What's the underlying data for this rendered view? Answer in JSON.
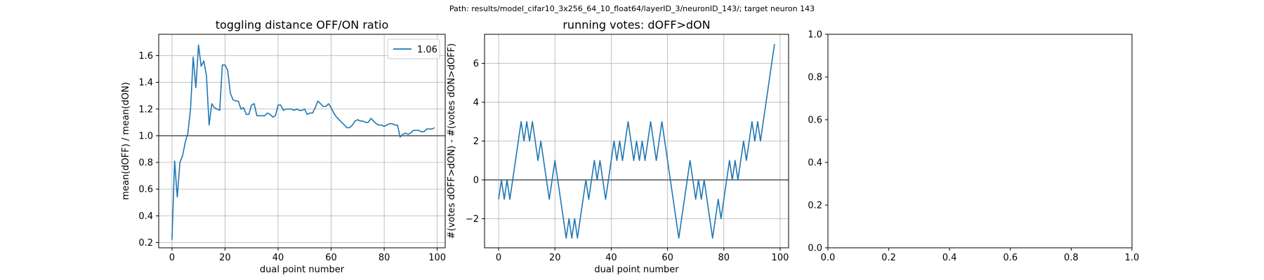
{
  "figure": {
    "suptitle": "Path: results/model_cifar10_3x256_64_10_float64/layerID_3/neuronID_143/; target neuron 143"
  },
  "chart_data": [
    {
      "type": "line",
      "title": "toggling distance OFF/ON ratio",
      "xlabel": "dual point number",
      "ylabel": "mean(dOFF) / mean(dON)",
      "xlim": [
        -5,
        103
      ],
      "ylim": [
        0.16,
        1.76
      ],
      "xticks": [
        0,
        20,
        40,
        60,
        80,
        100
      ],
      "yticks": [
        0.2,
        0.4,
        0.6,
        0.8,
        1.0,
        1.2,
        1.4,
        1.6
      ],
      "xtick_labels": [
        "0",
        "20",
        "40",
        "60",
        "80",
        "100"
      ],
      "ytick_labels": [
        "0.2",
        "0.4",
        "0.6",
        "0.8",
        "1.0",
        "1.2",
        "1.4",
        "1.6"
      ],
      "grid": true,
      "hline": 1.0,
      "legend": {
        "placement": "upper right",
        "entries": [
          "1.06"
        ]
      },
      "series": [
        {
          "name": "1.06",
          "color": "#1f77b4",
          "values": [
            0.22,
            0.81,
            0.54,
            0.8,
            0.85,
            0.95,
            1.02,
            1.2,
            1.59,
            1.36,
            1.68,
            1.52,
            1.56,
            1.45,
            1.08,
            1.24,
            1.21,
            1.2,
            1.19,
            1.53,
            1.53,
            1.49,
            1.32,
            1.27,
            1.26,
            1.26,
            1.2,
            1.21,
            1.16,
            1.16,
            1.23,
            1.24,
            1.15,
            1.15,
            1.15,
            1.15,
            1.17,
            1.16,
            1.14,
            1.15,
            1.23,
            1.23,
            1.19,
            1.2,
            1.2,
            1.2,
            1.19,
            1.2,
            1.19,
            1.19,
            1.2,
            1.16,
            1.17,
            1.17,
            1.21,
            1.26,
            1.24,
            1.22,
            1.22,
            1.24,
            1.21,
            1.17,
            1.14,
            1.12,
            1.1,
            1.08,
            1.06,
            1.06,
            1.08,
            1.11,
            1.12,
            1.11,
            1.11,
            1.1,
            1.1,
            1.13,
            1.11,
            1.09,
            1.08,
            1.08,
            1.07,
            1.08,
            1.09,
            1.09,
            1.08,
            1.08,
            0.99,
            1.01,
            1.02,
            1.01,
            1.02,
            1.04,
            1.04,
            1.04,
            1.03,
            1.03,
            1.05,
            1.05,
            1.05,
            1.06
          ]
        }
      ]
    },
    {
      "type": "line",
      "title": "running votes: dOFF>dON",
      "xlabel": "dual point number",
      "ylabel": "#(votes dOFF>dON) - #(votes dON>dOFF)",
      "xlim": [
        -5,
        103
      ],
      "ylim": [
        -3.5,
        7.5
      ],
      "xticks": [
        0,
        20,
        40,
        60,
        80,
        100
      ],
      "yticks": [
        -2,
        0,
        2,
        4,
        6
      ],
      "xtick_labels": [
        "0",
        "20",
        "40",
        "60",
        "80",
        "100"
      ],
      "ytick_labels": [
        "−2",
        "0",
        "2",
        "4",
        "6"
      ],
      "grid": true,
      "hline": 0,
      "series": [
        {
          "color": "#1f77b4",
          "values": [
            -1,
            0,
            -1,
            0,
            -1,
            0,
            1,
            2,
            3,
            2,
            3,
            2,
            3,
            2,
            1,
            2,
            1,
            0,
            -1,
            0,
            1,
            0,
            -1,
            -2,
            -3,
            -2,
            -3,
            -2,
            -3,
            -2,
            -1,
            0,
            -1,
            0,
            1,
            0,
            1,
            0,
            -1,
            0,
            1,
            2,
            1,
            2,
            1,
            2,
            3,
            2,
            1,
            2,
            1,
            2,
            1,
            2,
            3,
            2,
            1,
            2,
            3,
            2,
            1,
            0,
            -1,
            -2,
            -3,
            -2,
            -1,
            0,
            1,
            0,
            -1,
            0,
            -1,
            0,
            -1,
            -2,
            -3,
            -2,
            -1,
            -2,
            -1,
            0,
            1,
            0,
            1,
            0,
            1,
            2,
            1,
            2,
            3,
            2,
            3,
            2,
            3,
            4,
            5,
            6,
            7
          ]
        }
      ]
    },
    {
      "type": "line",
      "title": "",
      "xlim": [
        0,
        1
      ],
      "ylim": [
        0,
        1
      ],
      "xticks": [
        0,
        0.2,
        0.4,
        0.6,
        0.8,
        1.0
      ],
      "yticks": [
        0,
        0.2,
        0.4,
        0.6,
        0.8,
        1.0
      ],
      "xtick_labels": [
        "0.0",
        "0.2",
        "0.4",
        "0.6",
        "0.8",
        "1.0"
      ],
      "ytick_labels": [
        "0.0",
        "0.2",
        "0.4",
        "0.6",
        "0.8",
        "1.0"
      ],
      "grid": false,
      "series": []
    }
  ]
}
